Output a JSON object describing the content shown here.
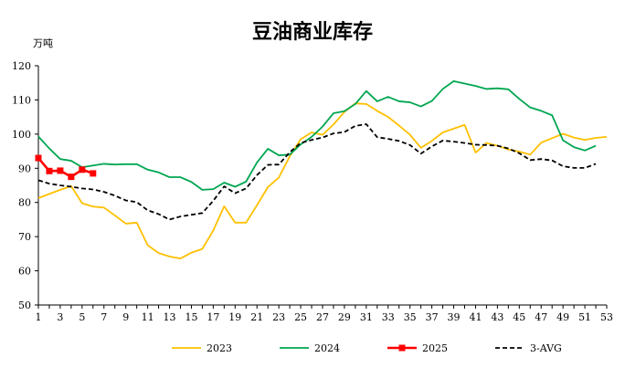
{
  "chart_data": {
    "type": "line",
    "title": "豆油商业库存",
    "unit_label": "万吨",
    "xlabel": "",
    "ylabel": "",
    "ylim": [
      50,
      120
    ],
    "y_ticks": [
      50,
      60,
      70,
      80,
      90,
      100,
      110,
      120
    ],
    "xlim": [
      1,
      53
    ],
    "x_ticks": [
      1,
      3,
      5,
      7,
      9,
      11,
      13,
      15,
      17,
      19,
      21,
      23,
      25,
      27,
      29,
      31,
      33,
      35,
      37,
      39,
      41,
      43,
      45,
      47,
      49,
      51,
      53
    ],
    "grid": false,
    "legend_position": "bottom",
    "series": [
      {
        "name": "2023",
        "color": "#FFC000",
        "style": "solid",
        "marker": "none",
        "values": [
          81.3,
          82.5,
          83.7,
          84.8,
          79.8,
          78.8,
          78.5,
          76.2,
          73.8,
          74.1,
          67.5,
          65.2,
          64.2,
          63.6,
          65.3,
          66.4,
          71.8,
          78.9,
          74.1,
          74.1,
          79.2,
          84.5,
          87.3,
          93.5,
          98.5,
          100.5,
          99.8,
          102.8,
          106.5,
          109.0,
          108.8,
          106.8,
          105.0,
          102.5,
          99.8,
          96.0,
          98.0,
          100.5,
          101.6,
          102.7,
          94.6,
          97.4,
          96.6,
          95.5,
          94.9,
          94.0,
          97.5,
          98.8,
          100.1,
          99.0,
          98.3,
          98.9,
          99.2
        ]
      },
      {
        "name": "2024",
        "color": "#00A651",
        "style": "solid",
        "marker": "none",
        "values": [
          99.3,
          95.8,
          92.7,
          92.2,
          90.3,
          90.8,
          91.3,
          91.1,
          91.2,
          91.2,
          89.6,
          88.8,
          87.4,
          87.4,
          86.0,
          83.7,
          83.9,
          85.8,
          84.6,
          86.1,
          91.7,
          95.7,
          93.8,
          94.0,
          97.0,
          99.2,
          102.2,
          106.1,
          106.7,
          108.8,
          112.6,
          109.6,
          110.9,
          109.6,
          109.3,
          108.1,
          109.7,
          113.2,
          115.5,
          114.8,
          114.1,
          113.2,
          113.4,
          113.1,
          110.3,
          107.8,
          106.8,
          105.5,
          98.2,
          96.2,
          95.2,
          96.6
        ]
      },
      {
        "name": "2025",
        "color": "#FF0000",
        "style": "solid",
        "marker": "square",
        "values": [
          93.0,
          89.2,
          89.3,
          87.5,
          89.6,
          88.5
        ]
      },
      {
        "name": "3-AVG",
        "color": "#000000",
        "style": "dashed",
        "marker": "none",
        "values": [
          86.5,
          85.5,
          85.0,
          84.6,
          84.1,
          83.8,
          83.1,
          82.0,
          80.6,
          80.1,
          77.7,
          76.6,
          75.0,
          75.9,
          76.4,
          76.9,
          80.5,
          84.7,
          82.7,
          84.1,
          88.0,
          91.0,
          91.1,
          94.7,
          97.4,
          98.3,
          99.0,
          100.2,
          100.6,
          102.4,
          102.9,
          99.1,
          98.6,
          98.0,
          96.8,
          94.3,
          96.4,
          98.1,
          97.8,
          97.4,
          96.9,
          96.8,
          96.6,
          95.8,
          94.4,
          92.4,
          92.7,
          92.3,
          90.6,
          90.1,
          90.1,
          91.3
        ]
      }
    ]
  }
}
